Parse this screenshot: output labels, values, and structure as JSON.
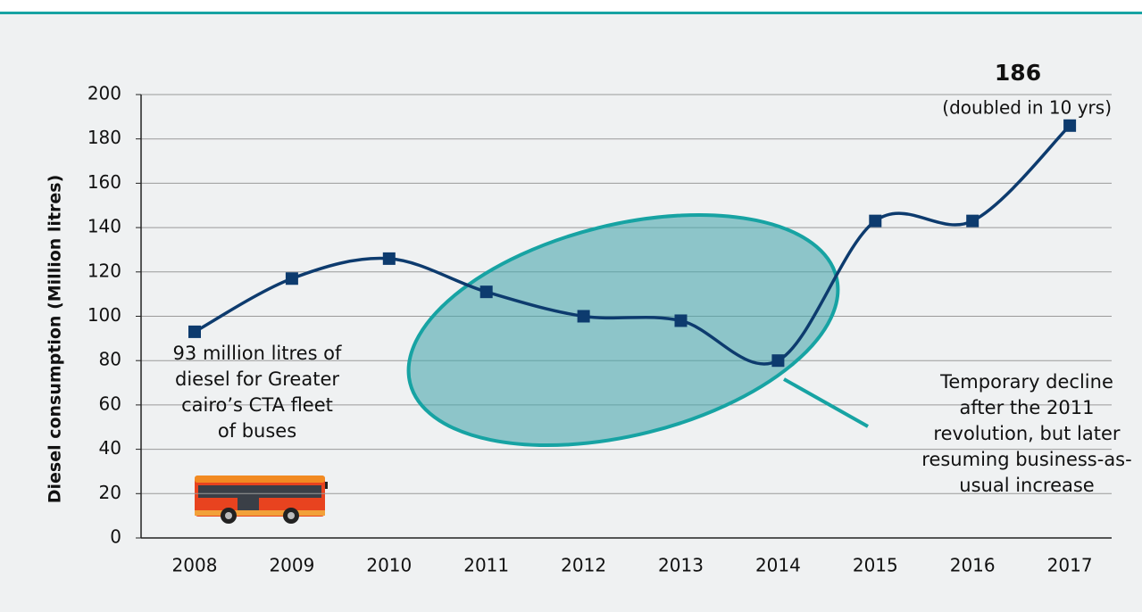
{
  "chart_data": {
    "type": "line",
    "y_axis_label": "Diesel consumption (Million litres)",
    "categories": [
      "2008",
      "2009",
      "2010",
      "2011",
      "2012",
      "2013",
      "2014",
      "2015",
      "2016",
      "2017"
    ],
    "series": [
      {
        "name": "Diesel consumption",
        "color": "#0d3b6e",
        "values": [
          93,
          117,
          126,
          111,
          100,
          98,
          80,
          143,
          143,
          186
        ]
      }
    ],
    "ylim": [
      0,
      200
    ],
    "yticks": [
      0,
      20,
      40,
      60,
      80,
      100,
      120,
      140,
      160,
      180,
      200
    ],
    "grid": true,
    "annotations": {
      "peak_value": "186",
      "peak_note": "(doubled in 10 yrs)",
      "start_note": [
        "93 million litres of",
        "diesel for Greater",
        "cairo’s CTA fleet",
        "of buses"
      ],
      "decline_note": [
        "Temporary decline",
        "after the 2011",
        "revolution, but later",
        "resuming business-as-",
        "usual increase"
      ]
    }
  }
}
